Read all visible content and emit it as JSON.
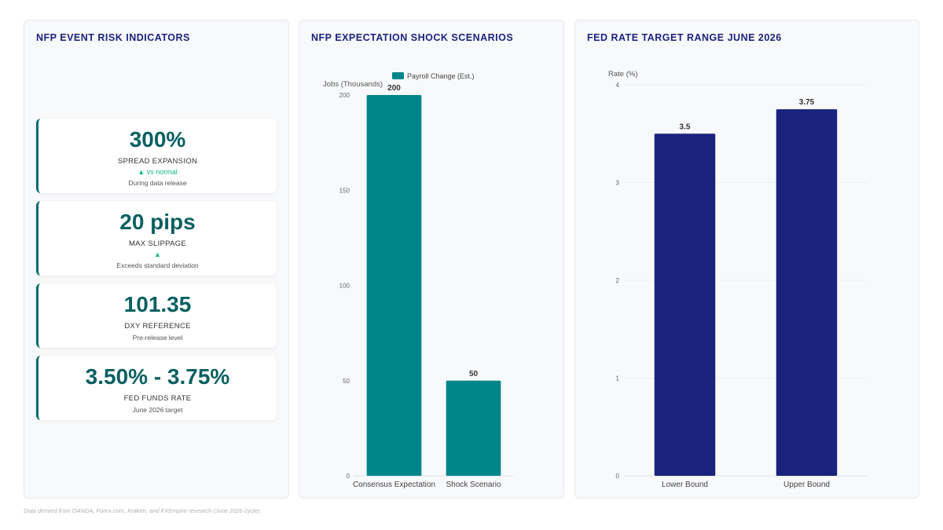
{
  "panels": {
    "kpi_title": "NFP EVENT RISK INDICATORS",
    "nfp_title": "NFP EXPECTATION SHOCK SCENARIOS",
    "fed_title": "FED RATE TARGET RANGE JUNE 2026"
  },
  "kpis": [
    {
      "value": "300%",
      "label": "SPREAD EXPANSION",
      "trend": "▲ vs normal",
      "note": "During data release"
    },
    {
      "value": "20 pips",
      "label": "MAX SLIPPAGE",
      "trend": "▲",
      "note": "Exceeds standard deviation"
    },
    {
      "value": "101.35",
      "label": "DXY REFERENCE",
      "trend": "",
      "note": "Pre-release level"
    },
    {
      "value": "3.50% - 3.75%",
      "label": "FED FUNDS RATE",
      "trend": "",
      "note": "June 2026 target"
    }
  ],
  "colors": {
    "teal": "#00868a",
    "navy": "#1a237e",
    "trend_up": "#10b981"
  },
  "chart_data": [
    {
      "type": "bar",
      "title": "NFP EXPECTATION SHOCK SCENARIOS",
      "categories": [
        "Consensus Expectation",
        "Shock Scenario"
      ],
      "series": [
        {
          "name": "Payroll Change (Est.)",
          "values": [
            200,
            50
          ]
        }
      ],
      "xlabel": "",
      "ylabel": "Jobs (Thousands)",
      "ylim": [
        0,
        200
      ],
      "yticks": [
        "0",
        "50",
        "100",
        "150",
        "200"
      ],
      "data_labels": [
        "200",
        "50"
      ],
      "grid": false,
      "legend": "top"
    },
    {
      "type": "bar",
      "title": "FED RATE TARGET RANGE JUNE 2026",
      "categories": [
        "Lower Bound",
        "Upper Bound"
      ],
      "series": [
        {
          "values": [
            3.5,
            3.75
          ]
        }
      ],
      "xlabel": "",
      "ylabel": "Rate (%)",
      "ylim": [
        0,
        4
      ],
      "yticks": [
        "0",
        "1",
        "2",
        "3",
        "4"
      ],
      "data_labels": [
        "3.5",
        "3.75"
      ],
      "grid": true,
      "legend": "none"
    }
  ],
  "footer": "Data derived from OANDA, Forex.com, Kraken, and FXEmpire research (June 2026 cycle)."
}
